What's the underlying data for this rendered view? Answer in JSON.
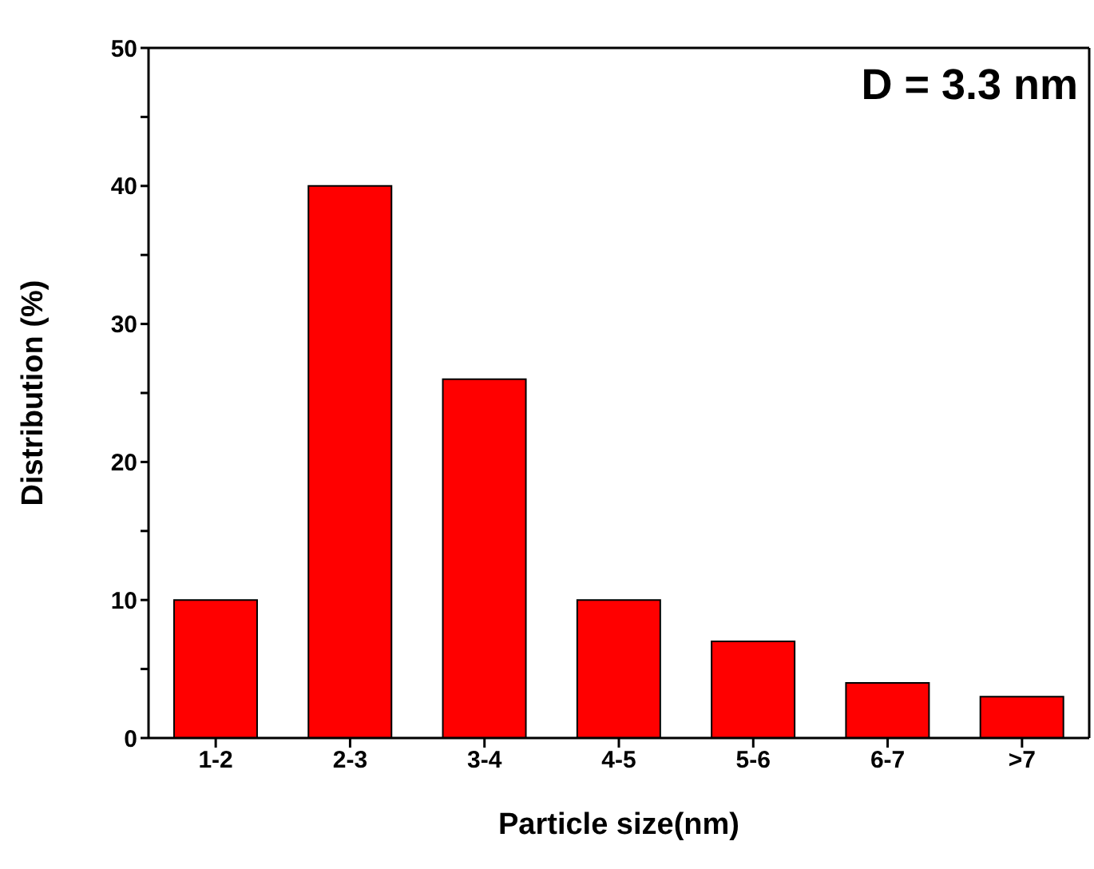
{
  "chart_data": {
    "type": "bar",
    "xlabel": "Particle size(nm)",
    "ylabel": "Distribution (%)",
    "categories": [
      "1-2",
      "2-3",
      "3-4",
      "4-5",
      "5-6",
      "6-7",
      ">7"
    ],
    "values": [
      10,
      40,
      26,
      10,
      7,
      4,
      3
    ],
    "color": "#ff0000",
    "ylim": [
      0,
      50
    ],
    "yticks": [
      0,
      {
        "value": 5,
        "label": null
      },
      10,
      {
        "value": 15,
        "label": null
      },
      20,
      {
        "value": 25,
        "label": null
      },
      30,
      {
        "value": 35,
        "label": null
      },
      40,
      {
        "value": 45,
        "label": null
      },
      50
    ],
    "annotations": [
      "D = 3.3 nm"
    ],
    "grid": false,
    "legend": false
  }
}
